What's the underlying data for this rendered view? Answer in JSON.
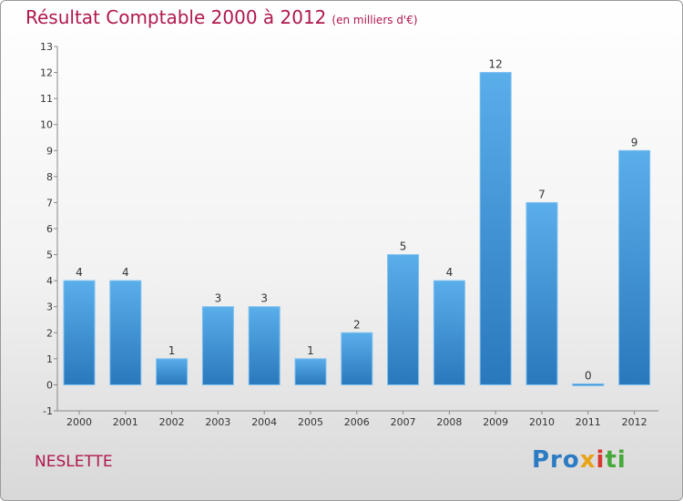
{
  "header": {
    "title": "Résultat Comptable 2000 à 2012",
    "subtitle": "(en milliers d'€)"
  },
  "footer": {
    "place": "NESLETTE",
    "logo": [
      "Pro",
      "x",
      "i",
      "ti"
    ]
  },
  "chart_data": {
    "type": "bar",
    "title": "Résultat Comptable 2000 à 2012",
    "subtitle": "(en milliers d'€)",
    "xlabel": "",
    "ylabel": "",
    "categories": [
      "2000",
      "2001",
      "2002",
      "2003",
      "2004",
      "2005",
      "2006",
      "2007",
      "2008",
      "2009",
      "2010",
      "2011",
      "2012"
    ],
    "values": [
      4,
      4,
      1,
      3,
      3,
      1,
      2,
      5,
      4,
      12,
      7,
      0,
      9
    ],
    "data_labels": [
      "4",
      "4",
      "1",
      "3",
      "3",
      "1",
      "2",
      "5",
      "4",
      "12",
      "7",
      "0",
      "9"
    ],
    "ylim": [
      -1,
      13
    ],
    "yticks": [
      "-1",
      "0",
      "1",
      "2",
      "3",
      "4",
      "5",
      "6",
      "7",
      "8",
      "9",
      "10",
      "11",
      "12",
      "13"
    ],
    "grid": false,
    "legend": "none",
    "bar_color": "#3a8fd4"
  }
}
